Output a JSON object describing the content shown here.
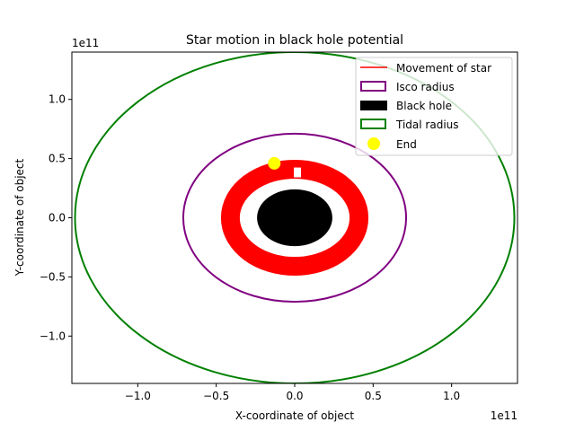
{
  "chart_data": {
    "type": "line",
    "title": "Star motion in black hole potential",
    "xlabel": "X-coordinate of object",
    "ylabel": "Y-coordinate of object",
    "x_offset_label": "1e11",
    "y_offset_label": "1e11",
    "xlim": [
      -1.42,
      1.42
    ],
    "ylim": [
      -1.4,
      1.4
    ],
    "x_ticks": [
      -1.0,
      -0.5,
      0.0,
      0.5,
      1.0
    ],
    "y_ticks": [
      -1.0,
      -0.5,
      0.0,
      0.5,
      1.0
    ],
    "x_tick_labels": [
      "−1.0",
      "−0.5",
      "0.0",
      "0.5",
      "1.0"
    ],
    "y_tick_labels": [
      "−1.0",
      "−0.5",
      "0.0",
      "0.5",
      "1.0"
    ],
    "grid": false,
    "legend_position": "top-right",
    "series": [
      {
        "name": "Movement of star",
        "type": "ring_band",
        "r_inner": 0.35,
        "r_outer": 0.47,
        "color": "#ff0000"
      },
      {
        "name": "Isco radius",
        "type": "circle",
        "r": 0.71,
        "color": "#800080"
      },
      {
        "name": "Black hole",
        "type": "filled_circle",
        "r": 0.24,
        "color": "#000000"
      },
      {
        "name": "Tidal radius",
        "type": "circle",
        "r": 1.4,
        "color": "#008000"
      },
      {
        "name": "End",
        "type": "point",
        "x": -0.13,
        "y": 0.46,
        "color": "#ffff00"
      }
    ]
  }
}
